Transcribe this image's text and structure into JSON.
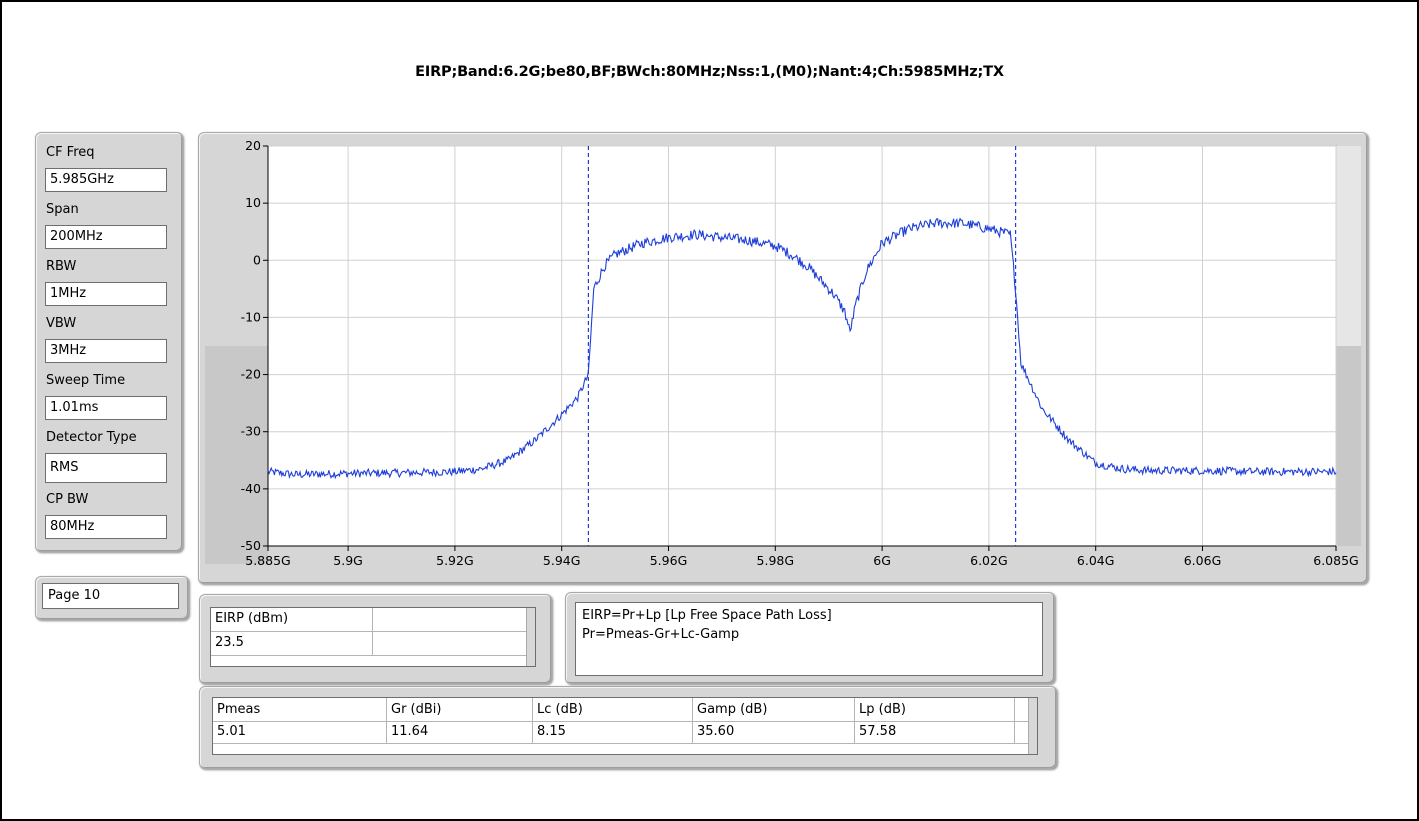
{
  "chart_data": {
    "type": "line",
    "title": "EIRP;Band:6.2G;be80,BF;BWch:80MHz;Nss:1,(M0);Nant:4;Ch:5985MHz;TX",
    "xlabel": "",
    "ylabel": "",
    "x_unit": "Hz",
    "xlim": [
      5885000000.0,
      6085000000.0
    ],
    "ylim": [
      -50,
      20
    ],
    "x_ticks": [
      5885000000.0,
      5900000000.0,
      5920000000.0,
      5940000000.0,
      5960000000.0,
      5980000000.0,
      6000000000.0,
      6020000000.0,
      6040000000.0,
      6060000000.0,
      6085000000.0
    ],
    "x_tick_labels": [
      "5.885G",
      "5.9G",
      "5.92G",
      "5.94G",
      "5.96G",
      "5.98G",
      "6G",
      "6.02G",
      "6.04G",
      "6.06G",
      "6.085G"
    ],
    "y_ticks": [
      20,
      10,
      0,
      -10,
      -20,
      -30,
      -40,
      -50
    ],
    "y_tick_labels": [
      "20",
      "10",
      "0",
      "-10",
      "-20",
      "-30",
      "-40",
      "-50"
    ],
    "grid": true,
    "series": [
      {
        "color": "#1f3fd8",
        "x": [
          5885000000.0,
          5890000000.0,
          5900000000.0,
          5910000000.0,
          5920000000.0,
          5925000000.0,
          5930000000.0,
          5935000000.0,
          5940000000.0,
          5943000000.0,
          5945000000.0,
          5946000000.0,
          5948000000.0,
          5950000000.0,
          5955000000.0,
          5960000000.0,
          5965000000.0,
          5970000000.0,
          5975000000.0,
          5980000000.0,
          5983000000.0,
          5986000000.0,
          5989000000.0,
          5991000000.0,
          5993000000.0,
          5994000000.0,
          5995000000.0,
          5997000000.0,
          6000000000.0,
          6005000000.0,
          6010000000.0,
          6015000000.0,
          6020000000.0,
          6024000000.0,
          6025000000.0,
          6026000000.0,
          6028000000.0,
          6030000000.0,
          6035000000.0,
          6040000000.0,
          6045000000.0,
          6050000000.0,
          6060000000.0,
          6070000000.0,
          6085000000.0
        ],
        "y": [
          -37,
          -37.5,
          -37.3,
          -37.2,
          -37,
          -36.5,
          -35,
          -31.5,
          -27,
          -24,
          -20,
          -5,
          -1,
          1,
          3,
          4,
          4.5,
          4,
          3.5,
          2.5,
          1,
          -1,
          -4,
          -6,
          -9,
          -12.5,
          -8,
          -2,
          3,
          5.5,
          6.5,
          6.5,
          5.5,
          4.5,
          -5,
          -18,
          -22,
          -26,
          -31.5,
          -35.5,
          -36.5,
          -36.8,
          -36.8,
          -37,
          -37
        ]
      }
    ],
    "markers": [
      {
        "x": 5945000000.0,
        "style": "dashed",
        "color": "#1f3fd8"
      },
      {
        "x": 6025000000.0,
        "style": "dashed",
        "color": "#1f3fd8"
      }
    ]
  },
  "params": [
    {
      "label": "CF Freq",
      "value": "5.985GHz"
    },
    {
      "label": "Span",
      "value": "200MHz"
    },
    {
      "label": "RBW",
      "value": "1MHz"
    },
    {
      "label": "VBW",
      "value": "3MHz"
    },
    {
      "label": "Sweep Time",
      "value": "1.01ms"
    },
    {
      "label": "Detector Type",
      "value": "RMS"
    },
    {
      "label": "CP BW",
      "value": "80MHz"
    }
  ],
  "page": "Page 10",
  "eirp_table": {
    "header": "EIRP (dBm)",
    "value": "23.5"
  },
  "note": {
    "line1": "EIRP=Pr+Lp [Lp Free Space Path Loss]",
    "line2": "Pr=Pmeas-Gr+Lc-Gamp"
  },
  "meas_table": {
    "headers": [
      "Pmeas",
      "Gr (dBi)",
      "Lc (dB)",
      "Gamp (dB)",
      "Lp (dB)"
    ],
    "values": [
      "5.01",
      "11.64",
      "8.15",
      "35.60",
      "57.58"
    ]
  },
  "colors": {
    "trace": "#1f3fd8",
    "panel": "#d6d6d6",
    "grid": "#d0d0d0",
    "frame": "#000000"
  }
}
